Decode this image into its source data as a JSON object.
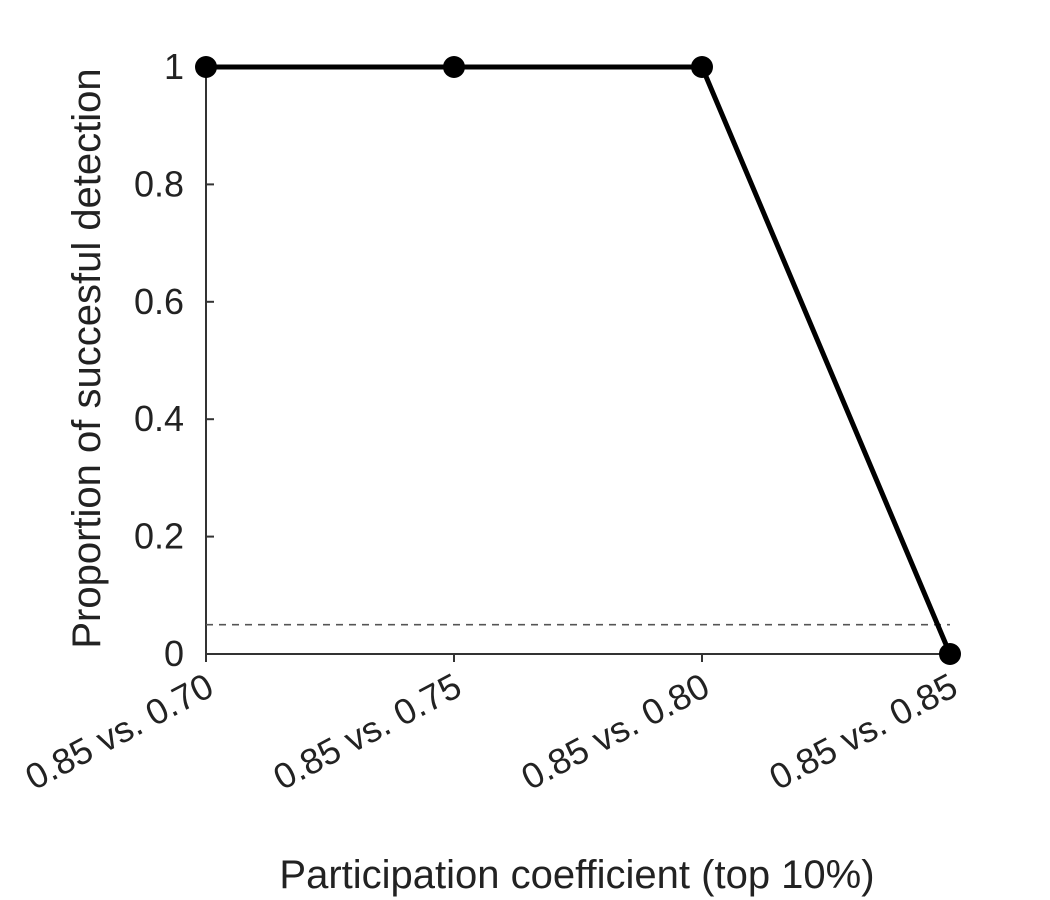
{
  "chart_data": {
    "type": "line",
    "categories": [
      "0.85 vs. 0.70",
      "0.85 vs. 0.75",
      "0.85 vs. 0.80",
      "0.85 vs. 0.85"
    ],
    "series": [
      {
        "values": [
          1,
          1,
          1,
          0
        ],
        "color": "#000000"
      }
    ],
    "reference_line": {
      "y": 0.05,
      "style": "dashed",
      "color": "#555555"
    },
    "xlabel": "Participation coefficient (top 10%)",
    "ylabel": "Proportion of succesful detection",
    "ylim": [
      0,
      1
    ],
    "yticks": [
      {
        "value": 0,
        "label": "0"
      },
      {
        "value": 0.2,
        "label": "0.2"
      },
      {
        "value": 0.4,
        "label": "0.4"
      },
      {
        "value": 0.6,
        "label": "0.6"
      },
      {
        "value": 0.8,
        "label": "0.8"
      },
      {
        "value": 1,
        "label": "1"
      }
    ],
    "grid": false
  }
}
